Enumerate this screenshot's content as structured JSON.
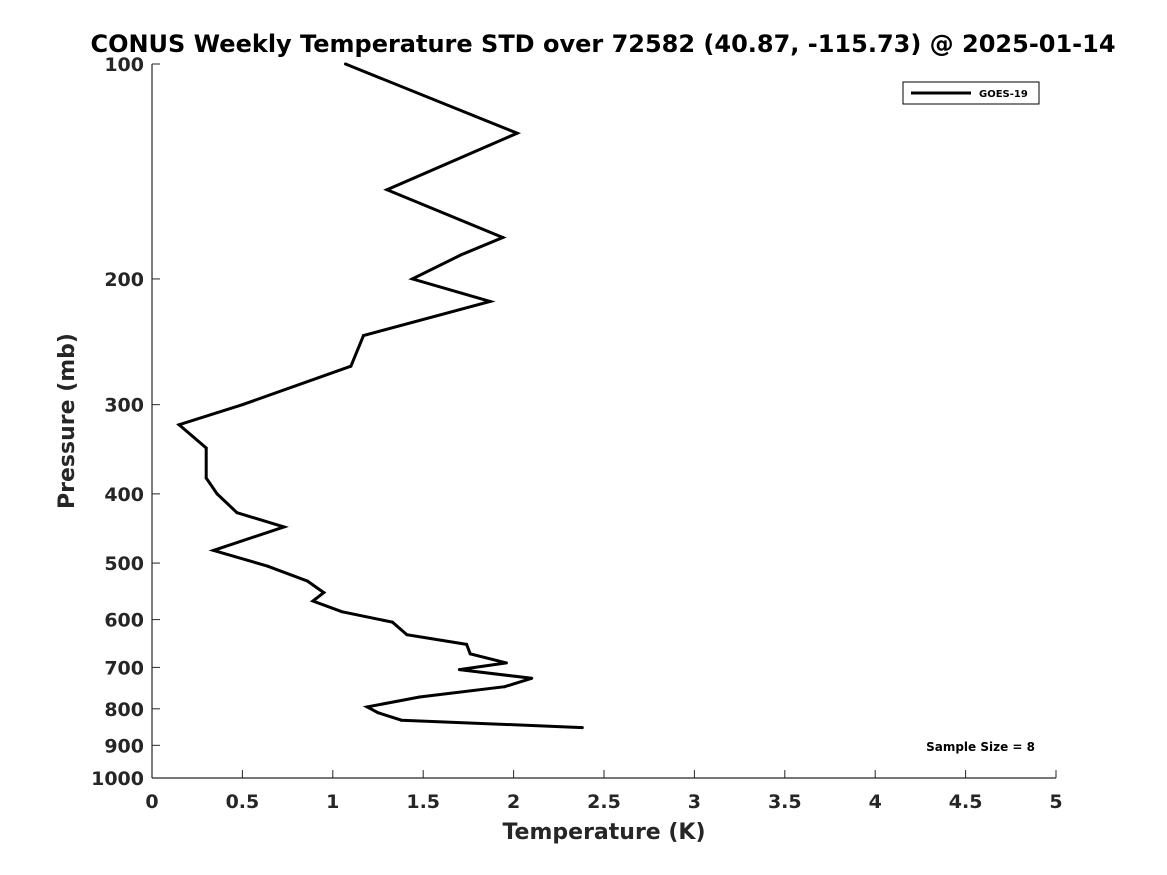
{
  "chart_data": {
    "type": "line",
    "title": "CONUS Weekly Temperature STD over 72582 (40.87, -115.73) @ 2025-01-14",
    "xlabel": "Temperature (K)",
    "ylabel": "Pressure (mb)",
    "xlim": [
      0,
      5
    ],
    "ylim": [
      100,
      1000
    ],
    "y_scale": "log",
    "y_reversed": true,
    "x_ticks": [
      0,
      0.5,
      1,
      1.5,
      2,
      2.5,
      3,
      3.5,
      4,
      4.5,
      5
    ],
    "x_tick_labels": [
      "0",
      "0.5",
      "1",
      "1.5",
      "2",
      "2.5",
      "3",
      "3.5",
      "4",
      "4.5",
      "5"
    ],
    "y_ticks": [
      100,
      200,
      300,
      400,
      500,
      600,
      700,
      800,
      900,
      1000
    ],
    "y_tick_labels": [
      "100",
      "200",
      "300",
      "400",
      "500",
      "600",
      "700",
      "800",
      "900",
      "1000"
    ],
    "grid": false,
    "legend_position": "top-right",
    "series": [
      {
        "name": "GOES-19",
        "color": "#000000",
        "points": [
          {
            "x": 1.07,
            "p": 100
          },
          {
            "x": 2.02,
            "p": 125
          },
          {
            "x": 1.3,
            "p": 150
          },
          {
            "x": 1.94,
            "p": 175
          },
          {
            "x": 1.71,
            "p": 185
          },
          {
            "x": 1.44,
            "p": 200
          },
          {
            "x": 1.87,
            "p": 215
          },
          {
            "x": 1.17,
            "p": 240
          },
          {
            "x": 1.1,
            "p": 265
          },
          {
            "x": 0.5,
            "p": 300
          },
          {
            "x": 0.15,
            "p": 320
          },
          {
            "x": 0.3,
            "p": 345
          },
          {
            "x": 0.3,
            "p": 380
          },
          {
            "x": 0.36,
            "p": 400
          },
          {
            "x": 0.47,
            "p": 425
          },
          {
            "x": 0.73,
            "p": 445
          },
          {
            "x": 0.34,
            "p": 480
          },
          {
            "x": 0.64,
            "p": 505
          },
          {
            "x": 0.86,
            "p": 530
          },
          {
            "x": 0.95,
            "p": 550
          },
          {
            "x": 0.89,
            "p": 565
          },
          {
            "x": 1.05,
            "p": 585
          },
          {
            "x": 1.33,
            "p": 605
          },
          {
            "x": 1.41,
            "p": 630
          },
          {
            "x": 1.74,
            "p": 650
          },
          {
            "x": 1.76,
            "p": 670
          },
          {
            "x": 1.96,
            "p": 690
          },
          {
            "x": 1.7,
            "p": 705
          },
          {
            "x": 2.1,
            "p": 725
          },
          {
            "x": 1.95,
            "p": 745
          },
          {
            "x": 1.48,
            "p": 770
          },
          {
            "x": 1.19,
            "p": 795
          },
          {
            "x": 1.25,
            "p": 810
          },
          {
            "x": 1.38,
            "p": 830
          },
          {
            "x": 2.38,
            "p": 850
          }
        ]
      }
    ],
    "annotation": "Sample Size = 8"
  }
}
